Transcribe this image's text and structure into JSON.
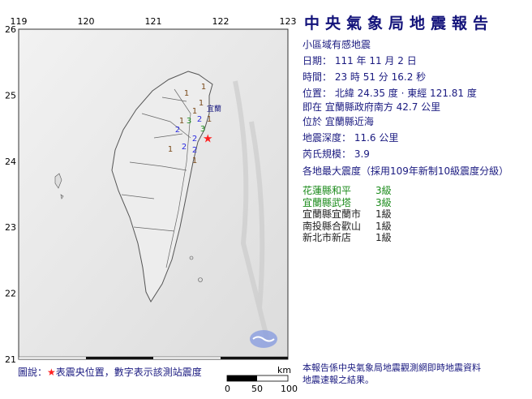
{
  "title": "中央氣象局地震報告",
  "report": {
    "category": "小區域有感地震",
    "date": "日期： 111 年 11 月 2 日",
    "time": "時間： 23 時 51 分 16.2 秒",
    "position": "位置： 北緯 24.35 度 · 東經 121.81 度",
    "relative": "即在 宜蘭縣政府南方 42.7 公里",
    "located": "位於 宜蘭縣近海",
    "depth": "地震深度： 11.6 公里",
    "magnitude": "芮氏規模： 3.9",
    "intensity_header": "各地最大震度（採用109年新制10級震度分級）"
  },
  "stations": [
    {
      "name": "花蓮縣和平",
      "level": "3級",
      "color": "#1a8a1a"
    },
    {
      "name": "宜蘭縣武塔",
      "level": "3級",
      "color": "#1a8a1a"
    },
    {
      "name": "宜蘭縣宜蘭市",
      "level": "1級",
      "color": "#222222"
    },
    {
      "name": "南投縣合歡山",
      "level": "1級",
      "color": "#222222"
    },
    {
      "name": "新北市新店",
      "level": "1級",
      "color": "#222222"
    }
  ],
  "map": {
    "lon_ticks": [
      "119",
      "120",
      "121",
      "122",
      "123"
    ],
    "lat_ticks": [
      "26",
      "25",
      "24",
      "23",
      "22",
      "21"
    ],
    "city_label": "宜蘭",
    "epicenter": {
      "lat": 24.35,
      "lon": 121.81
    },
    "intensity_colors": {
      "1": "#7a4a1a",
      "2": "#2a2ae0",
      "3": "#1a8a1a"
    },
    "star_color": "#ff2020",
    "markers": [
      "1",
      "1",
      "1",
      "1",
      "3",
      "1",
      "2",
      "1",
      "2",
      "3",
      "2",
      "2",
      "2",
      "1",
      "1"
    ]
  },
  "legend": {
    "prefix": "圖說：",
    "star": "★",
    "text": "表震央位置，數字表示該測站震度"
  },
  "scale": {
    "unit": "km",
    "ticks": [
      "0",
      "50",
      "100"
    ]
  },
  "note": [
    "本報告係中央氣象局地震觀測網即時地震資料",
    "地震速報之結果。"
  ]
}
